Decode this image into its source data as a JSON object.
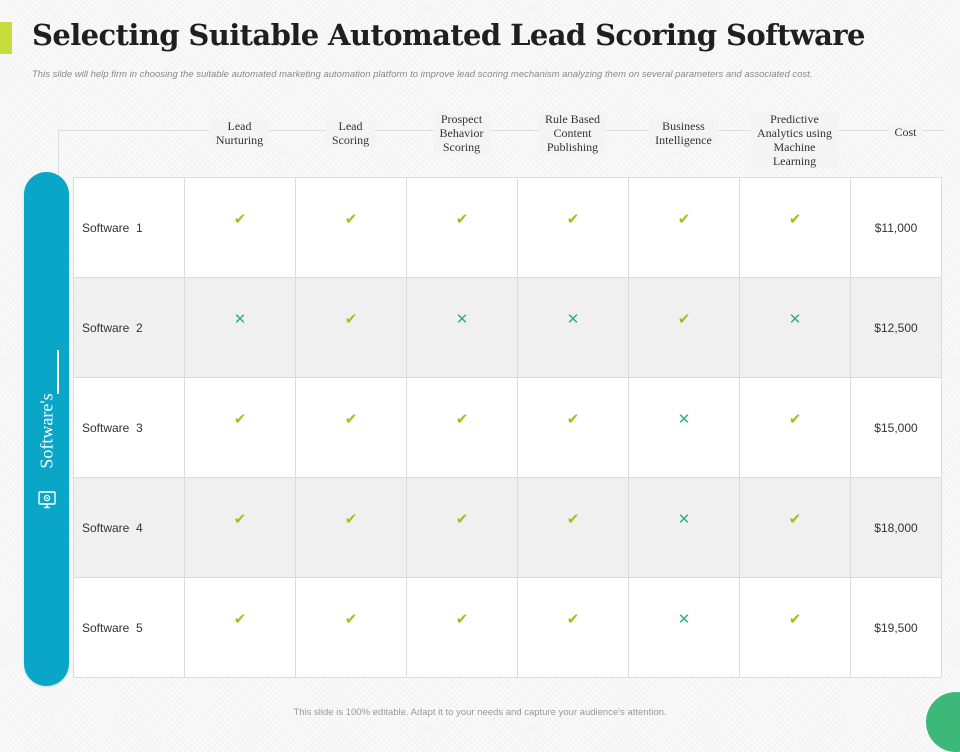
{
  "slide": {
    "title": "Selecting Suitable Automated Lead Scoring Software",
    "subtitle": "This slide will help firm in choosing the suitable automated marketing automation platform to improve lead scoring mechanism analyzing them on several parameters and associated cost.",
    "footer": "This slide is 100% editable. Adapt it to your needs and capture your audience's attention.",
    "side_label": "Software's",
    "colors": {
      "accent": "#c5dd3c",
      "pill": "#0aa6c8",
      "check": "#9ac31c",
      "cross": "#2fb27f",
      "corner": "#3cb878"
    }
  },
  "table": {
    "columns": [
      "Lead\nNurturing",
      "Lead\nScoring",
      "Prospect\nBehavior\nScoring",
      "Rule Based\nContent\nPublishing",
      "Business\nIntelligence",
      "Predictive\nAnalytics using\nMachine\nLearning",
      "Cost"
    ],
    "check_symbol": "✔",
    "cross_symbol": "✕",
    "rows": [
      {
        "name": "Software  1",
        "features": [
          true,
          true,
          true,
          true,
          true,
          true
        ],
        "cost": "$11,000"
      },
      {
        "name": "Software  2",
        "features": [
          false,
          true,
          false,
          false,
          true,
          false
        ],
        "cost": "$12,500"
      },
      {
        "name": "Software  3",
        "features": [
          true,
          true,
          true,
          true,
          false,
          true
        ],
        "cost": "$15,000"
      },
      {
        "name": "Software  4",
        "features": [
          true,
          true,
          true,
          true,
          false,
          true
        ],
        "cost": "$18,000"
      },
      {
        "name": "Software  5",
        "features": [
          true,
          true,
          true,
          true,
          false,
          true
        ],
        "cost": "$19,500"
      }
    ]
  }
}
